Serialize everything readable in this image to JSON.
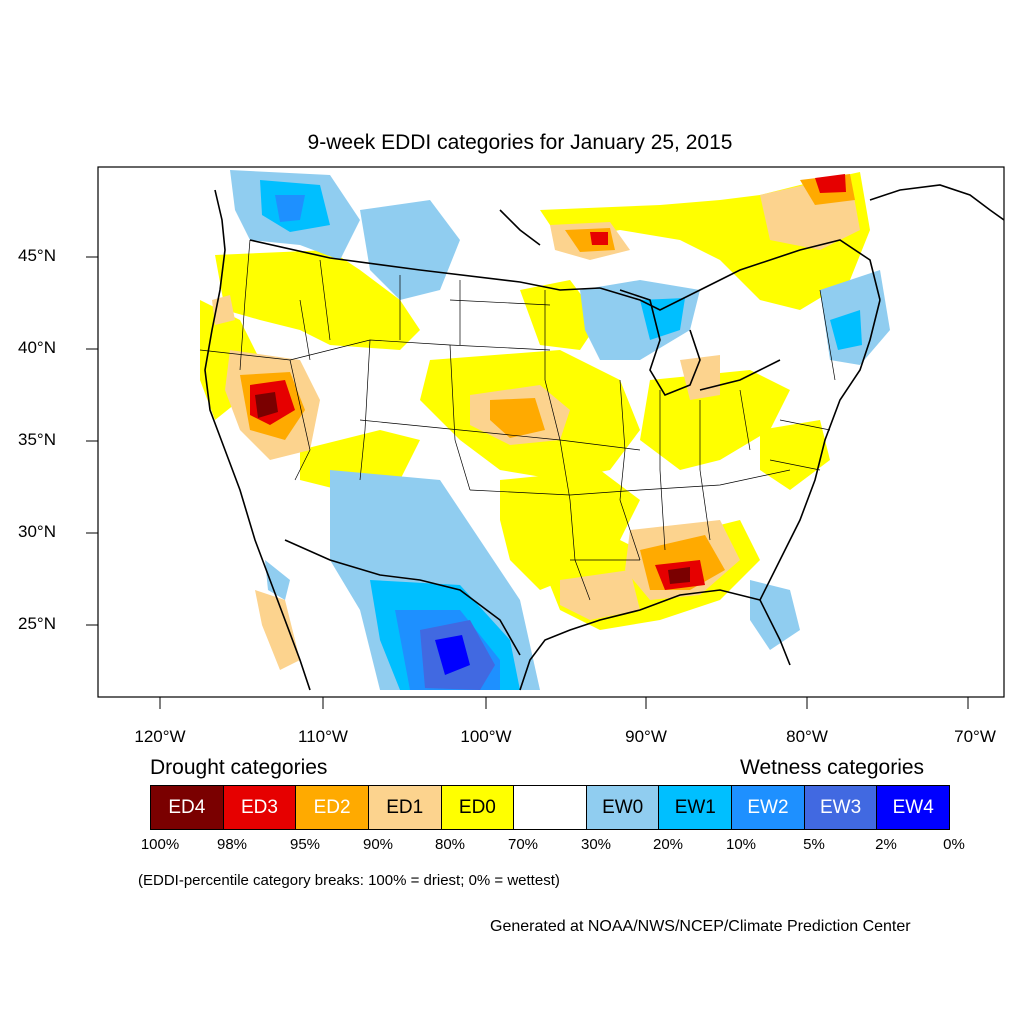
{
  "title": "9-week EDDI categories for January 25, 2015",
  "lat_labels": [
    "45°N",
    "40°N",
    "35°N",
    "30°N",
    "25°N"
  ],
  "lon_labels": [
    "120°W",
    "110°W",
    "100°W",
    "90°W",
    "80°W",
    "70°W"
  ],
  "legend": {
    "drought_heading": "Drought categories",
    "wetness_heading": "Wetness categories",
    "categories": [
      {
        "label": "ED4",
        "color": "#7a0000",
        "text_color": "#ffffff"
      },
      {
        "label": "ED3",
        "color": "#e60000",
        "text_color": "#ffffff"
      },
      {
        "label": "ED2",
        "color": "#ffaa00",
        "text_color": "#ffffff"
      },
      {
        "label": "ED1",
        "color": "#fcd38e",
        "text_color": "#000000"
      },
      {
        "label": "ED0",
        "color": "#ffff00",
        "text_color": "#000000"
      },
      {
        "label": "",
        "color": "#ffffff",
        "text_color": "#000000"
      },
      {
        "label": "EW0",
        "color": "#90cdf0",
        "text_color": "#000000"
      },
      {
        "label": "EW1",
        "color": "#00bfff",
        "text_color": "#000000"
      },
      {
        "label": "EW2",
        "color": "#1e90ff",
        "text_color": "#ffffff"
      },
      {
        "label": "EW3",
        "color": "#4169e1",
        "text_color": "#ffffff"
      },
      {
        "label": "EW4",
        "color": "#0000ff",
        "text_color": "#ffffff"
      }
    ],
    "breaks": [
      "100%",
      "98%",
      "95%",
      "90%",
      "80%",
      "70%",
      "30%",
      "20%",
      "10%",
      "5%",
      "2%",
      "0%"
    ]
  },
  "note": "(EDDI-percentile category breaks: 100% = driest; 0% = wettest)",
  "credit": "Generated at NOAA/NWS/NCEP/Climate Prediction Center"
}
